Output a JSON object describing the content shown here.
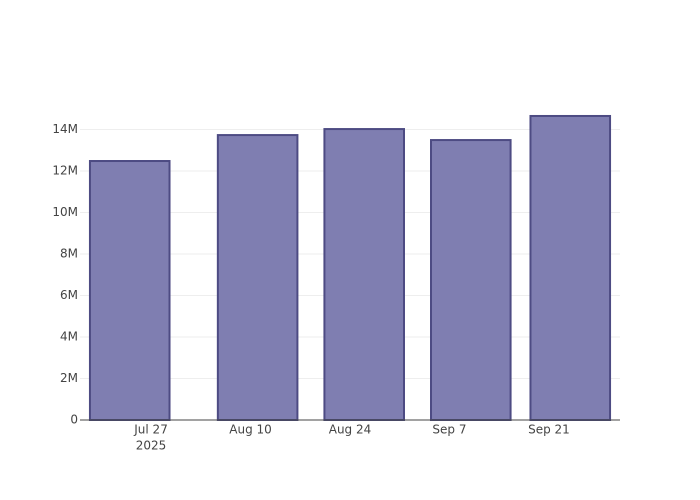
{
  "chart_data": {
    "type": "bar",
    "x": [
      "2025-07-24",
      "2025-08-11",
      "2025-08-26",
      "2025-09-10",
      "2025-09-24"
    ],
    "values": [
      12480000,
      13730000,
      14020000,
      13490000,
      14650000
    ],
    "color": "#7f7eb1",
    "line_color": "#4d4b83",
    "xlim": [
      "2025-07-17",
      "2025-10-01"
    ],
    "xticks": [
      {
        "value": "2025-07-27",
        "label": [
          "Jul 27",
          "2025"
        ]
      },
      {
        "value": "2025-08-10",
        "label": "Aug 10"
      },
      {
        "value": "2025-08-24",
        "label": "Aug 24"
      },
      {
        "value": "2025-09-07",
        "label": "Sep 7"
      },
      {
        "value": "2025-09-21",
        "label": "Sep 21"
      }
    ],
    "ylim": [
      0,
      15420000
    ],
    "yticks": [
      0,
      {
        "value": 2000000,
        "label": "2M"
      },
      {
        "value": 4000000,
        "label": "4M"
      },
      {
        "value": 6000000,
        "label": "6M"
      },
      {
        "value": 8000000,
        "label": "8M"
      },
      {
        "value": 10000000,
        "label": "10M"
      },
      {
        "value": 12000000,
        "label": "12M"
      },
      {
        "value": 14000000,
        "label": "14M"
      }
    ],
    "grid": true
  }
}
